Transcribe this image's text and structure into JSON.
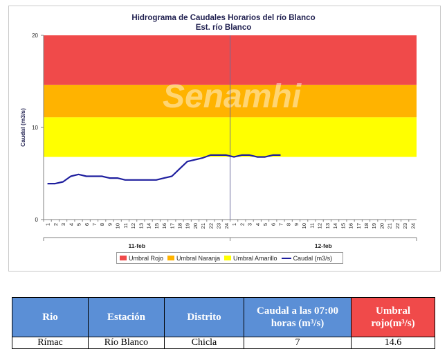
{
  "chart_data": {
    "type": "line",
    "title": "Hidrograma de Caudales Horarios del río Blanco",
    "subtitle": "Est. río Blanco",
    "ylabel": "Caudal  (m3/s)",
    "ylim": [
      0,
      20
    ],
    "y_ticks": [
      "0",
      "10",
      "20"
    ],
    "x_tick_labels": [
      "1",
      "2",
      "3",
      "4",
      "5",
      "6",
      "7",
      "8",
      "9",
      "10",
      "11",
      "12",
      "13",
      "14",
      "15",
      "16",
      "17",
      "18",
      "19",
      "20",
      "21",
      "22",
      "23",
      "24",
      "1",
      "2",
      "3",
      "4",
      "5",
      "6",
      "7",
      "8",
      "9",
      "10",
      "11",
      "12",
      "13",
      "14",
      "15",
      "16",
      "17",
      "18",
      "19",
      "20",
      "21",
      "22",
      "23",
      "24"
    ],
    "day_labels": [
      "11-feb",
      "12-feb"
    ],
    "watermark": "Senamhi",
    "thresholds": [
      {
        "name": "Umbral Rojo",
        "from": 14.6,
        "to": 20,
        "color": "#f04a4a"
      },
      {
        "name": "Umbral Naranja",
        "from": 11.1,
        "to": 14.6,
        "color": "#ffb300"
      },
      {
        "name": "Umbral Amarillo",
        "from": 6.8,
        "to": 11.1,
        "color": "#ffff00"
      }
    ],
    "series": [
      {
        "name": "Caudal (m3/s)",
        "color": "#1e1e9e",
        "values": [
          3.9,
          3.9,
          4.1,
          4.7,
          4.9,
          4.7,
          4.7,
          4.7,
          4.5,
          4.5,
          4.3,
          4.3,
          4.3,
          4.3,
          4.3,
          4.5,
          4.7,
          5.5,
          6.3,
          6.5,
          6.7,
          7.0,
          7.0,
          7.0,
          6.8,
          7.0,
          7.0,
          6.8,
          6.8,
          7.0,
          7.0
        ]
      }
    ],
    "legend": [
      "Umbral Rojo",
      "Umbral Naranja",
      "Umbral Amarillo",
      "Caudal (m3/s)"
    ],
    "legend_position": "bottom"
  },
  "table": {
    "headers": [
      "Rio",
      "Estación",
      "Distrito",
      "Caudal a las 07:00 horas (m³/s)",
      "Umbral rojo(m³/s)"
    ],
    "row": [
      "Rímac",
      "Río Blanco",
      "Chicla",
      "7",
      "14.6"
    ]
  }
}
